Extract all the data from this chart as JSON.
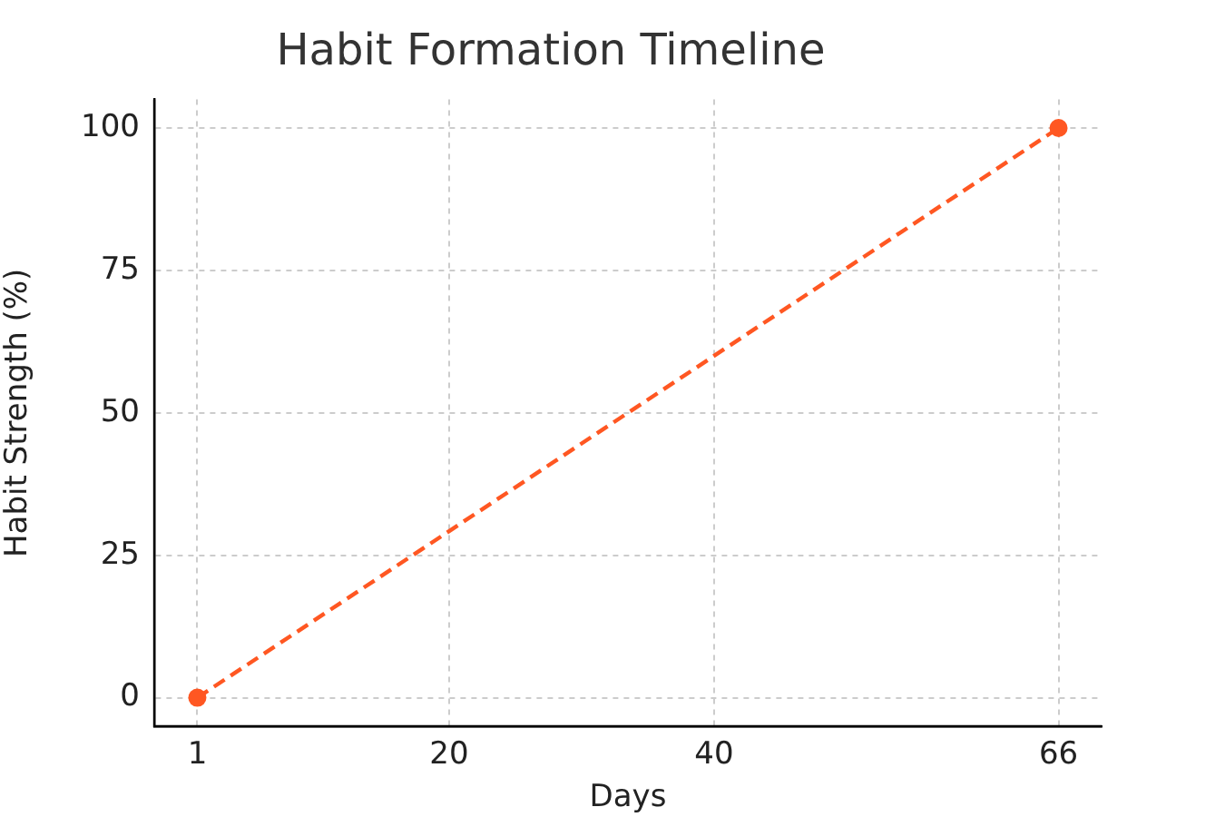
{
  "chart_data": {
    "type": "line",
    "title": "Habit Formation Timeline",
    "xlabel": "Days",
    "ylabel": "Habit Strength (%)",
    "x": [
      1,
      66
    ],
    "values": [
      0,
      100
    ],
    "color": "#ff5722",
    "xlim": [
      -2.25,
      69.25
    ],
    "xticks": [
      1,
      20,
      40,
      66
    ],
    "ylim": [
      -5,
      105
    ],
    "yticks": [
      0,
      25,
      50,
      75,
      100
    ],
    "grid": true,
    "marker": "circle",
    "line_style": "dashed"
  }
}
